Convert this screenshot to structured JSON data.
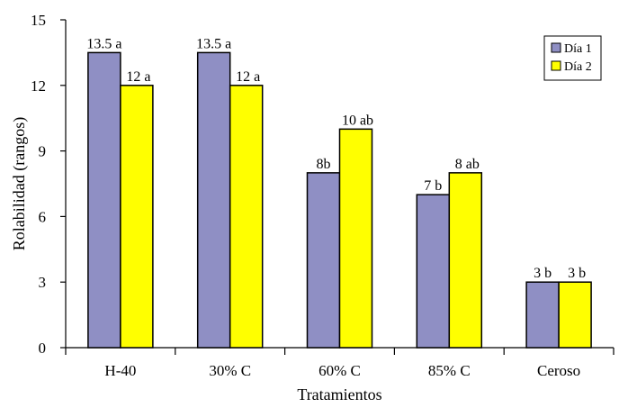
{
  "chart_data": {
    "type": "bar",
    "categories": [
      "H-40",
      "30% C",
      "60% C",
      "85% C",
      "Ceroso"
    ],
    "series": [
      {
        "name": "Día 1",
        "values": [
          13.5,
          13.5,
          8,
          7,
          3
        ],
        "labels": [
          "13.5 a",
          "13.5 a",
          "8b",
          "7 b",
          "3 b"
        ],
        "color": "#8f8fc4"
      },
      {
        "name": "Día 2",
        "values": [
          12,
          12,
          10,
          8,
          3
        ],
        "labels": [
          "12 a",
          "12 a",
          "10 ab",
          "8 ab",
          "3 b"
        ],
        "color": "#ffff00"
      }
    ],
    "title": "",
    "xlabel": "Tratamientos",
    "ylabel": "Rolabilidad (rangos)",
    "ylim": [
      0,
      15
    ],
    "yticks": [
      0,
      3,
      6,
      9,
      12,
      15
    ],
    "grid": false,
    "legend_position": "top-right"
  }
}
